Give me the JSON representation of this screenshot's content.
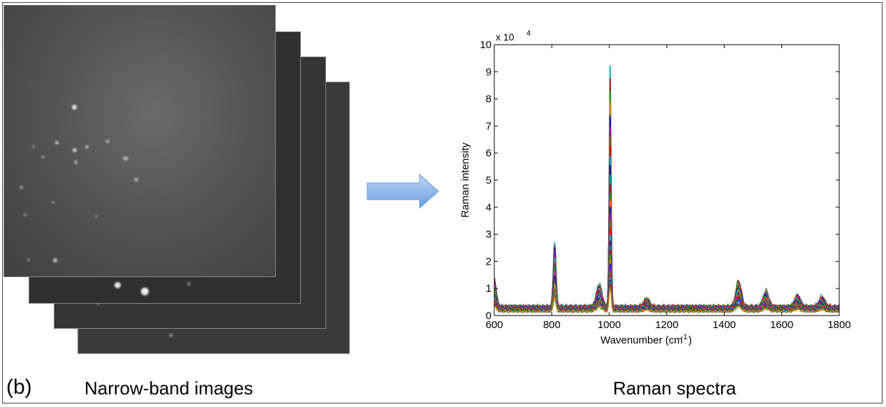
{
  "figure": {
    "panel_label": "(b)",
    "left_caption": "Narrow-band images",
    "right_caption": "Raman spectra",
    "arrow_color": "#8cb4e8"
  },
  "chart_data": {
    "type": "line",
    "title": "",
    "xlabel": "Wavenumber (cm",
    "xlabel_sup": "-1",
    "xlabel_end": ")",
    "ylabel": "Raman intensity",
    "y_multiplier": "x 10",
    "y_multiplier_exp": "4",
    "xlim": [
      600,
      1800
    ],
    "ylim": [
      0,
      10
    ],
    "xticks": [
      600,
      800,
      1000,
      1200,
      1400,
      1600,
      1800
    ],
    "yticks": [
      0,
      1,
      2,
      3,
      4,
      5,
      6,
      7,
      8,
      9,
      10
    ],
    "grid": false,
    "peaks": [
      {
        "x": 600,
        "y": 1.3
      },
      {
        "x": 810,
        "y": 2.6
      },
      {
        "x": 965,
        "y": 1.1
      },
      {
        "x": 1003,
        "y": 9.5
      },
      {
        "x": 1130,
        "y": 0.6
      },
      {
        "x": 1450,
        "y": 1.25
      },
      {
        "x": 1545,
        "y": 0.85
      },
      {
        "x": 1655,
        "y": 0.7
      },
      {
        "x": 1740,
        "y": 0.65
      }
    ],
    "series_colors": [
      "#00a8a8",
      "#c00000",
      "#00b000",
      "#ff8000",
      "#0000c0",
      "#c000c0",
      "#808000",
      "#ff0000",
      "#00c0ff",
      "#000080"
    ]
  }
}
